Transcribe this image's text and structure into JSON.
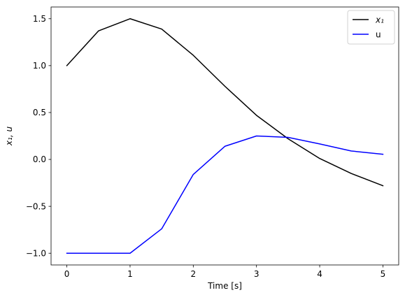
{
  "chart_data": {
    "type": "line",
    "xlabel": "Time [s]",
    "ylabel": "x₁, u",
    "xlim": [
      -0.25,
      5.25
    ],
    "ylim": [
      -1.125,
      1.625
    ],
    "x_ticks": [
      0,
      1,
      2,
      3,
      4,
      5
    ],
    "x_tick_labels": [
      "0",
      "1",
      "2",
      "3",
      "4",
      "5"
    ],
    "y_ticks": [
      -1.0,
      -0.5,
      0.0,
      0.5,
      1.0,
      1.5
    ],
    "y_tick_labels": [
      "−1.0",
      "−0.5",
      "0.0",
      "0.5",
      "1.0",
      "1.5"
    ],
    "grid": false,
    "legend_position": "top-right",
    "x": [
      0,
      0.5,
      1,
      1.5,
      2,
      2.5,
      3,
      3.5,
      4,
      4.5,
      5
    ],
    "series": [
      {
        "name": "x₁",
        "color": "#000000",
        "values": [
          1.0,
          1.37,
          1.5,
          1.39,
          1.11,
          0.78,
          0.47,
          0.22,
          0.01,
          -0.15,
          -0.28
        ]
      },
      {
        "name": "u",
        "color": "#0000ff",
        "values": [
          -1.0,
          -1.0,
          -1.0,
          -0.74,
          -0.16,
          0.14,
          0.25,
          0.235,
          0.165,
          0.09,
          0.055
        ]
      }
    ]
  }
}
